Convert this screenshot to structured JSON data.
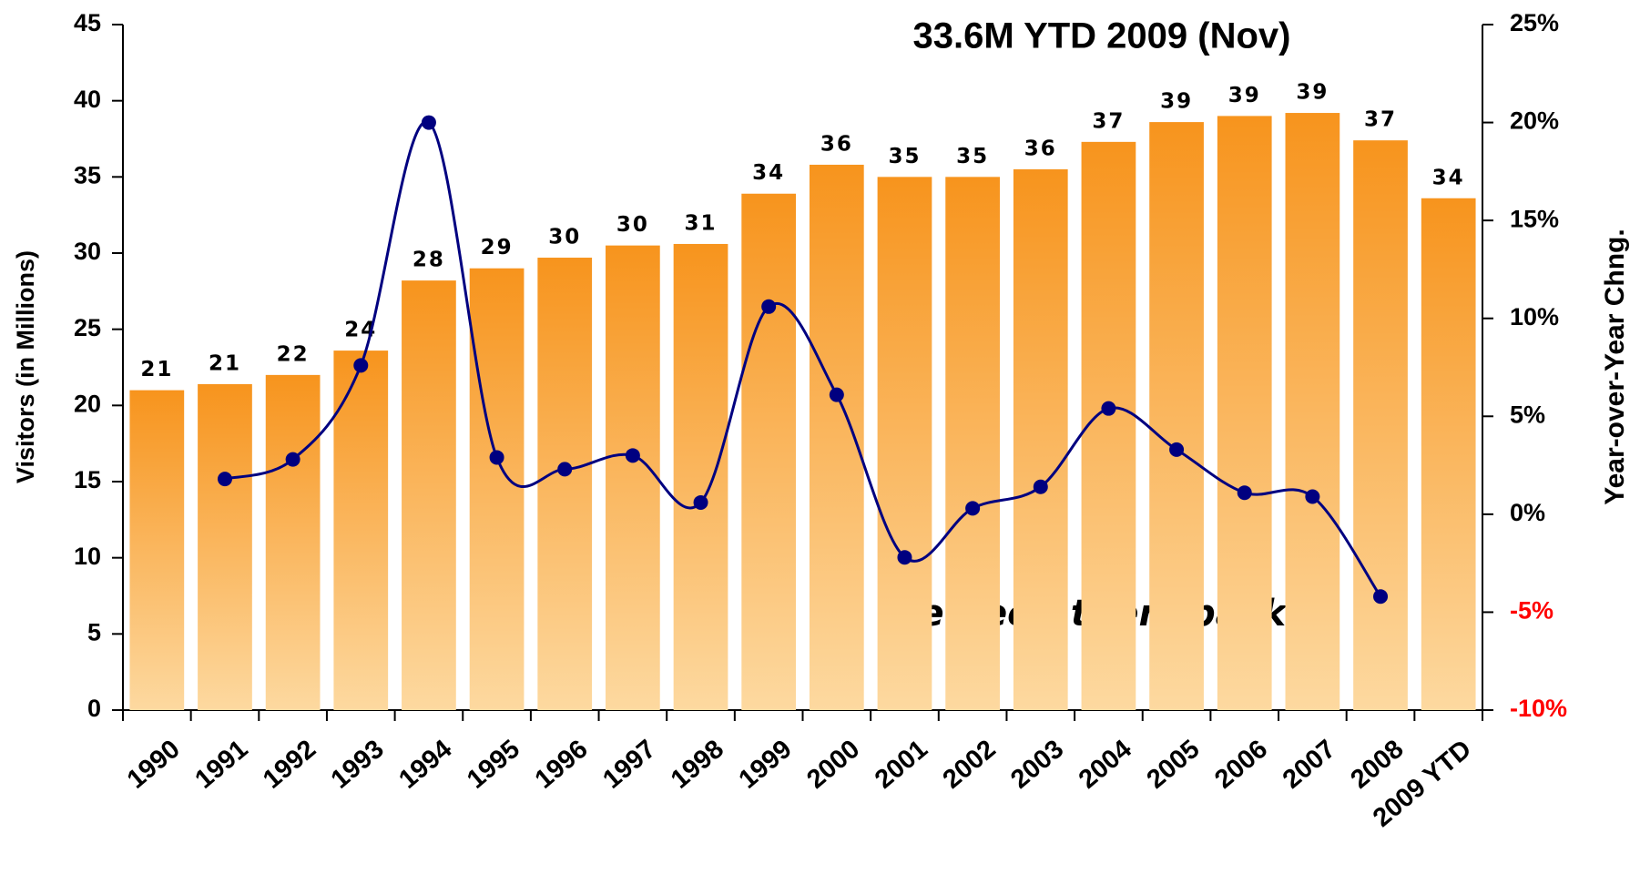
{
  "chart_data": {
    "type": "bar",
    "title": "33.6M YTD 2009 (Nov)",
    "annotation": "We need them back",
    "ylabel": "Visitors (in Millions)",
    "y2label": "Year-over-Year Chng.",
    "categories": [
      "1990",
      "1991",
      "1992",
      "1993",
      "1994",
      "1995",
      "1996",
      "1997",
      "1998",
      "1999",
      "2000",
      "2001",
      "2002",
      "2003",
      "2004",
      "2005",
      "2006",
      "2007",
      "2008",
      "2009 YTD"
    ],
    "series": [
      {
        "name": "Visitors",
        "type": "bar",
        "color": "#f7941d",
        "values": [
          21.0,
          21.4,
          22.0,
          23.6,
          28.2,
          29.0,
          29.7,
          30.5,
          30.6,
          33.9,
          35.8,
          35.0,
          35.0,
          35.5,
          37.3,
          38.6,
          39.0,
          39.2,
          37.4,
          33.6
        ],
        "value_labels": [
          "21",
          "21",
          "22",
          "24",
          "28",
          "29",
          "30",
          "30",
          "31",
          "34",
          "36",
          "35",
          "35",
          "36",
          "37",
          "39",
          "39",
          "39",
          "37",
          "34"
        ]
      },
      {
        "name": "Year-over-Year Chng.",
        "type": "line",
        "axis": "y2",
        "color": "#000080",
        "values": [
          null,
          1.8,
          2.8,
          7.6,
          20.0,
          2.9,
          2.3,
          3.0,
          0.6,
          10.6,
          6.1,
          -2.2,
          0.3,
          1.4,
          5.4,
          3.3,
          1.1,
          0.9,
          -4.2,
          null
        ]
      }
    ],
    "ylim": [
      0,
      45
    ],
    "yticks": [
      0,
      5,
      10,
      15,
      20,
      25,
      30,
      35,
      40,
      45
    ],
    "y2lim": [
      -10,
      25
    ],
    "y2ticks": [
      {
        "value": -10,
        "label": "-10%"
      },
      {
        "value": -5,
        "label": "-5%"
      },
      {
        "value": 0,
        "label": "0%"
      },
      {
        "value": 5,
        "label": "5%"
      },
      {
        "value": 10,
        "label": "10%"
      },
      {
        "value": 15,
        "label": "15%"
      },
      {
        "value": 20,
        "label": "20%"
      },
      {
        "value": 25,
        "label": "25%"
      }
    ],
    "y2tick_negative_color": "#ff0000",
    "grid": false
  }
}
